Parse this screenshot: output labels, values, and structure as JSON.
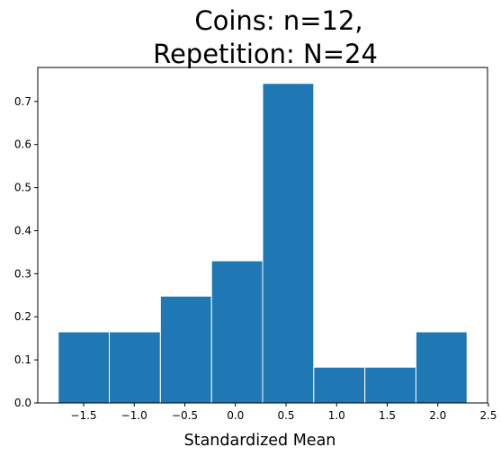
{
  "chart_data": {
    "type": "bar",
    "title_lines": [
      "Coins: n=12,",
      "Repetition: N=24"
    ],
    "xlabel": "Standardized Mean",
    "ylabel": "",
    "bins": [
      {
        "x0": -1.751,
        "x1": -1.246,
        "value": 0.165
      },
      {
        "x0": -1.246,
        "x1": -0.741,
        "value": 0.165
      },
      {
        "x0": -0.741,
        "x1": -0.236,
        "value": 0.248
      },
      {
        "x0": -0.236,
        "x1": 0.269,
        "value": 0.33
      },
      {
        "x0": 0.269,
        "x1": 0.774,
        "value": 0.742
      },
      {
        "x0": 0.774,
        "x1": 1.279,
        "value": 0.083
      },
      {
        "x0": 1.279,
        "x1": 1.784,
        "value": 0.083
      },
      {
        "x0": 1.784,
        "x1": 2.289,
        "value": 0.165
      }
    ],
    "xlim": [
      -1.953,
      2.491
    ],
    "ylim": [
      0,
      0.779
    ],
    "xticks": [
      -1.5,
      -1.0,
      -0.5,
      0.0,
      0.5,
      1.0,
      1.5,
      2.0,
      2.5
    ],
    "xtick_labels": [
      "−1.5",
      "−1.0",
      "−0.5",
      "0.0",
      "0.5",
      "1.0",
      "1.5",
      "2.0",
      "2.5"
    ],
    "yticks": [
      0.0,
      0.1,
      0.2,
      0.3,
      0.4,
      0.5,
      0.6,
      0.7
    ],
    "ytick_labels": [
      "0.0",
      "0.1",
      "0.2",
      "0.3",
      "0.4",
      "0.5",
      "0.6",
      "0.7"
    ],
    "grid": false,
    "bar_color": "#1f77b4",
    "edge_color": "#ffffff"
  }
}
